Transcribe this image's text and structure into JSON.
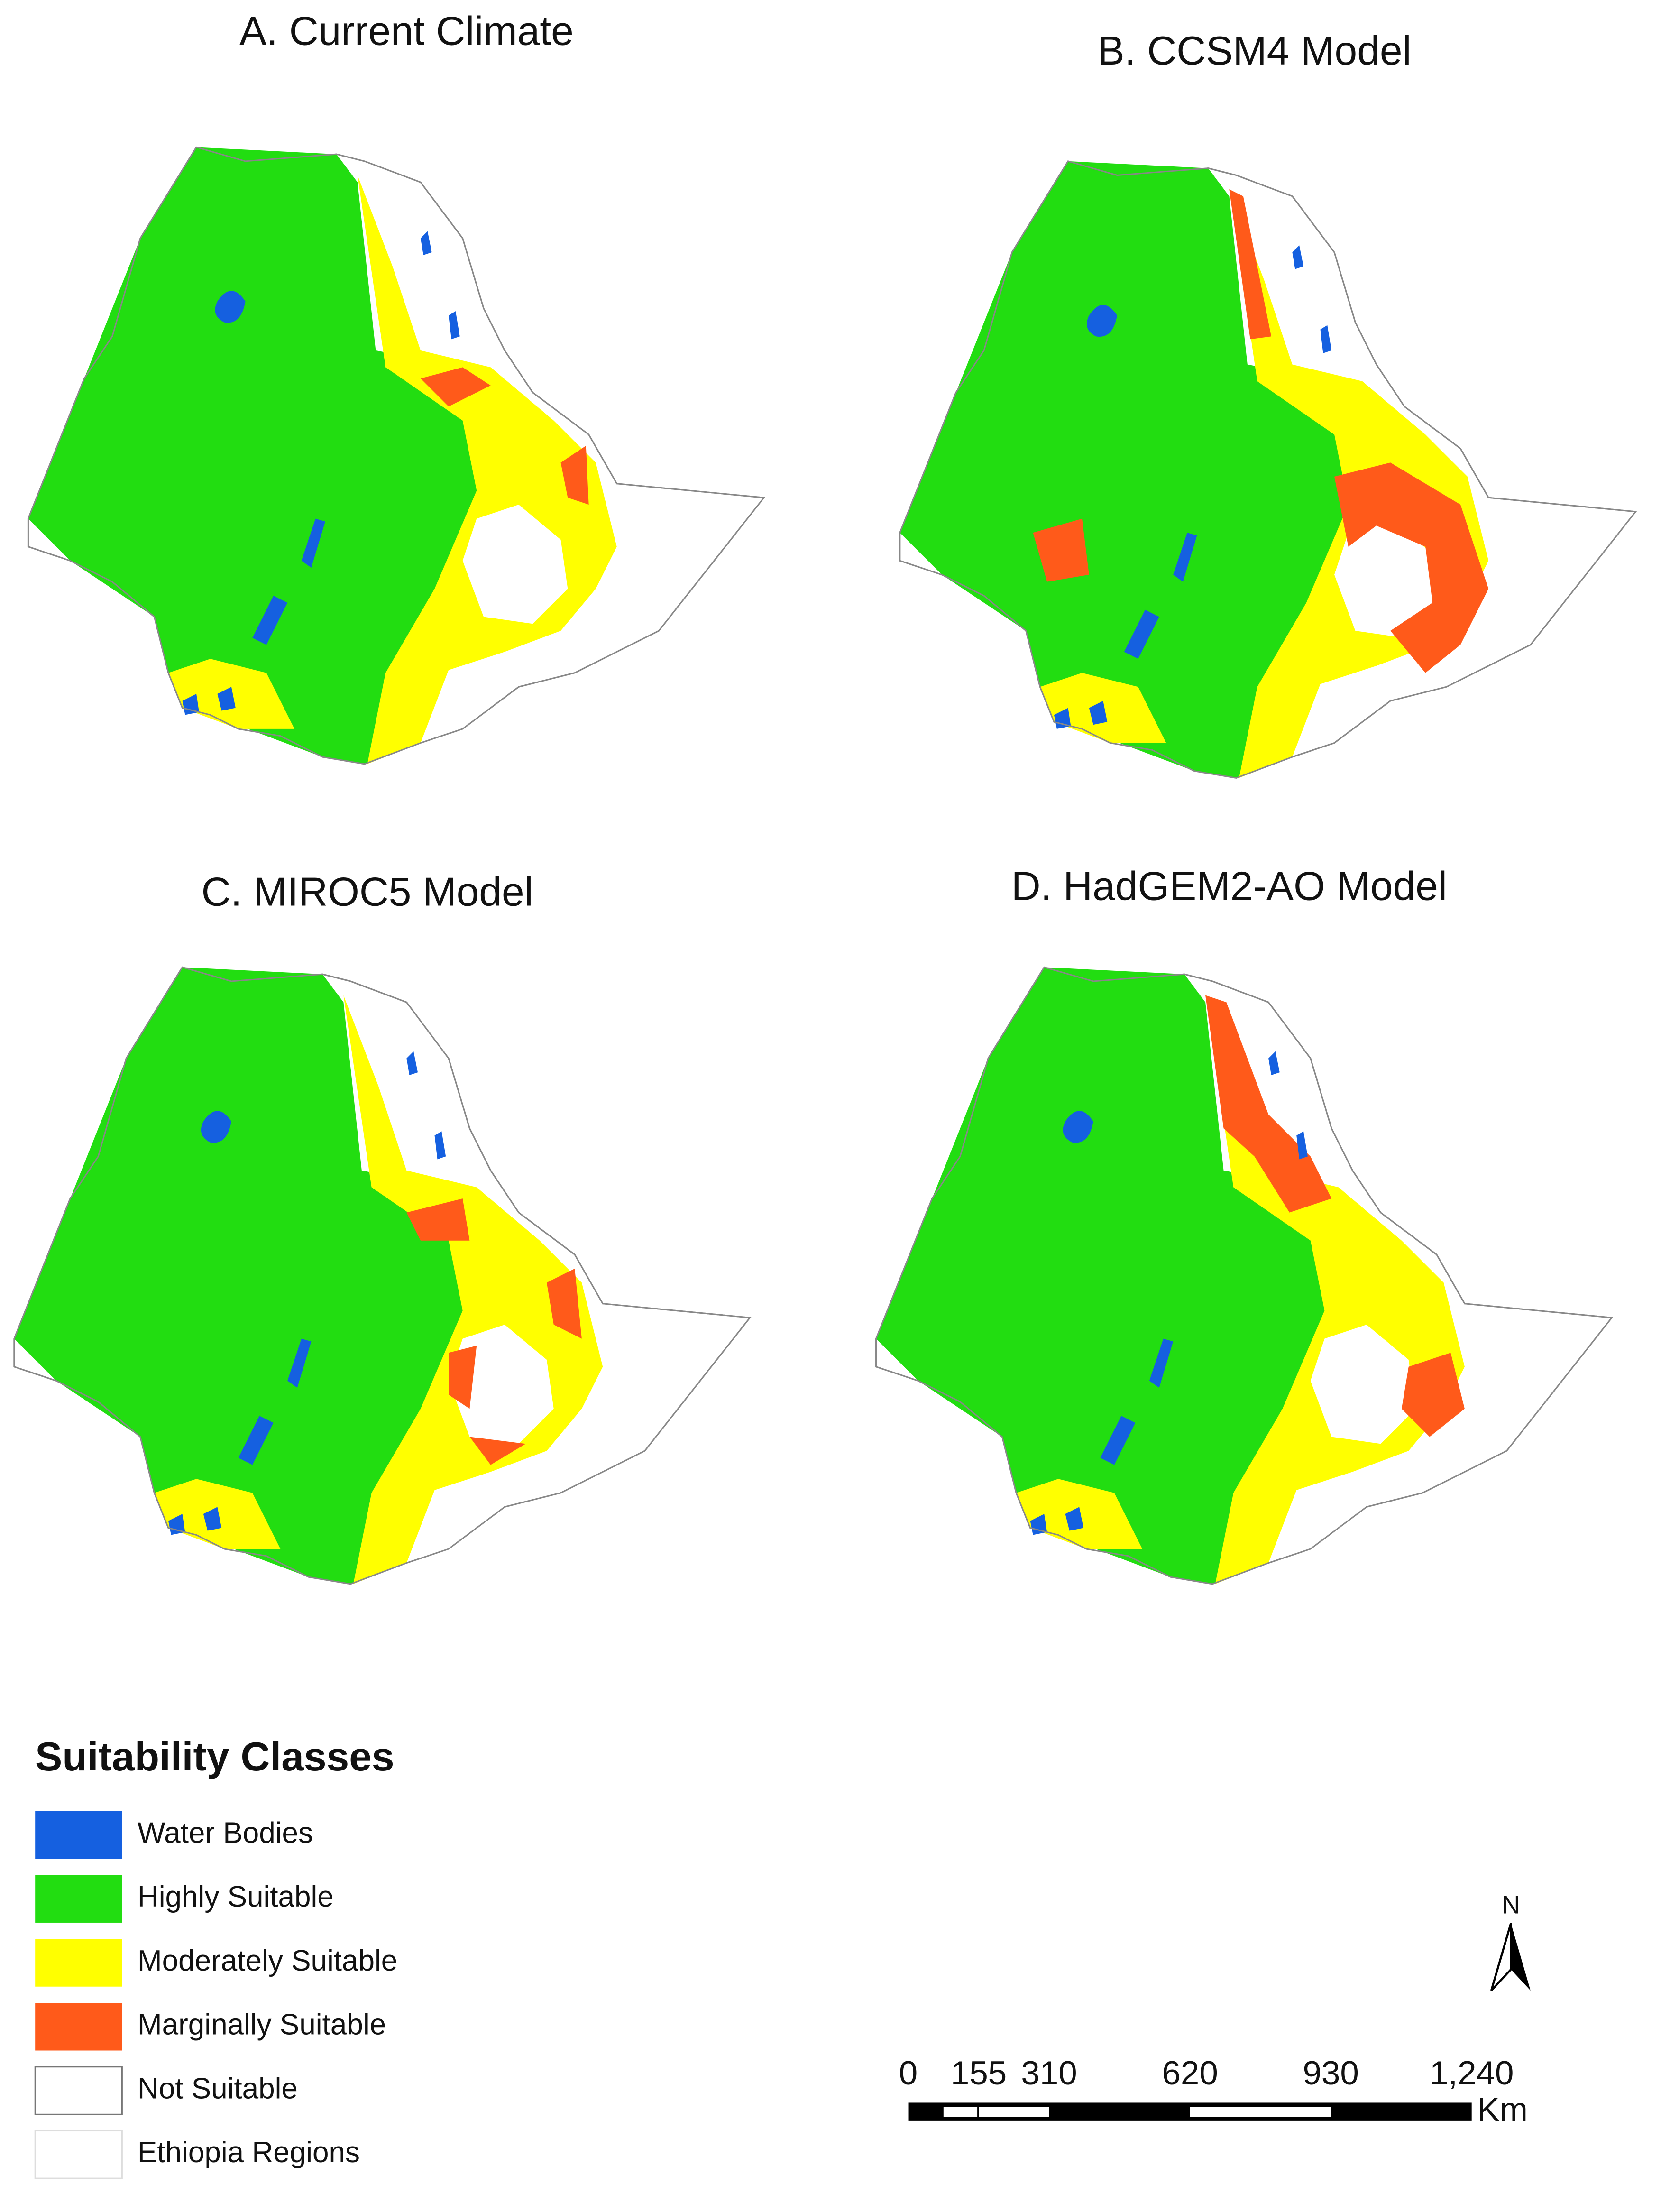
{
  "panels": [
    {
      "title": "A. Current Climate"
    },
    {
      "title": "B. CCSM4 Model"
    },
    {
      "title": "C. MIROC5 Model"
    },
    {
      "title": "D. HadGEM2-AO Model"
    }
  ],
  "legend": {
    "title": "Suitability Classes",
    "items": [
      {
        "label": "Water Bodies",
        "color": "#1560e0"
      },
      {
        "label": "Highly Suitable",
        "color": "#22dd11"
      },
      {
        "label": "Moderately Suitable",
        "color": "#ffff00"
      },
      {
        "label": "Marginally Suitable",
        "color": "#ff5a1a"
      },
      {
        "label": "Not Suitable",
        "color": "#ffffff"
      },
      {
        "label": "Ethiopia Regions",
        "color": "#ffffff"
      }
    ]
  },
  "north_arrow": {
    "label": "N"
  },
  "scale_bar": {
    "ticks": [
      0,
      155,
      310,
      620,
      930,
      {
        "value": 1240,
        "label": "1,240"
      }
    ],
    "unit": "Km"
  }
}
